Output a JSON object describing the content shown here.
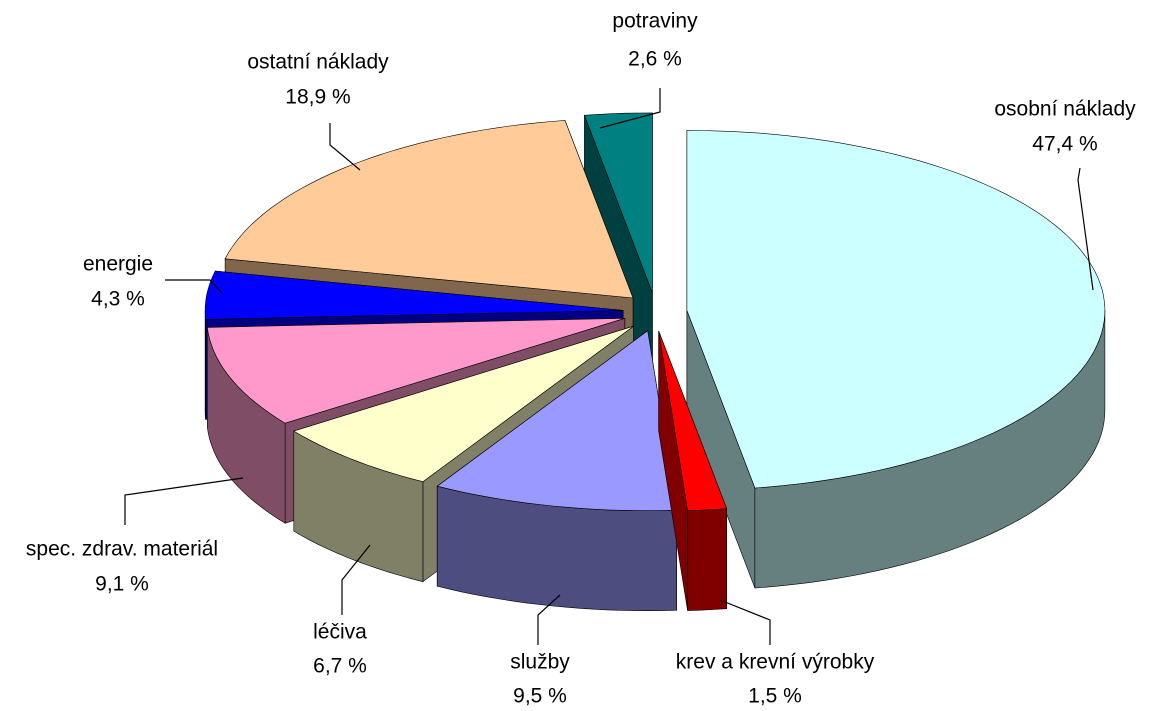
{
  "chart_data": {
    "type": "pie",
    "categories": [
      "osobní náklady",
      "krev a krevní výrobky",
      "služby",
      "léčiva",
      "spec. zdrav. materiál",
      "energie",
      "ostatní náklady",
      "potraviny"
    ],
    "values": [
      47.4,
      1.5,
      9.5,
      6.7,
      9.1,
      4.3,
      18.9,
      2.6
    ],
    "value_labels": [
      "47,4 %",
      "1,5 %",
      "9,5 %",
      "6,7 %",
      "9,1 %",
      "4,3 %",
      "18,9 %",
      "2,6 %"
    ],
    "colors": [
      "#ccffff",
      "#ff0000",
      "#9999ff",
      "#ffffcc",
      "#ff99cc",
      "#0000ff",
      "#ffcc99",
      "#008080"
    ]
  }
}
